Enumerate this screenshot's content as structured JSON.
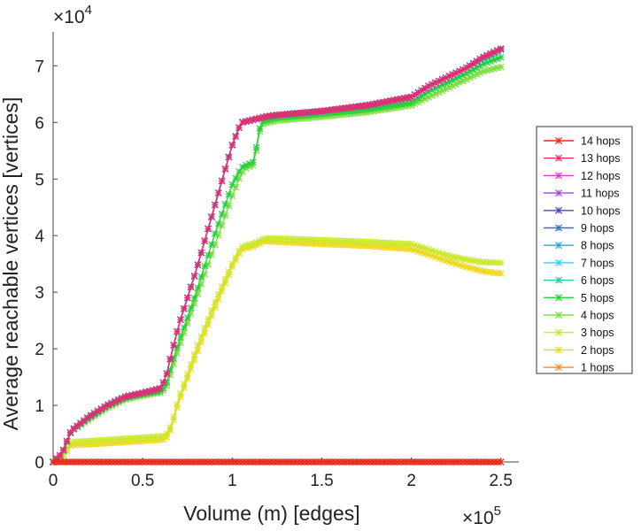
{
  "chart_data": {
    "type": "line",
    "xlabel": "Volume (m) [edges]",
    "ylabel": "Average reachable vertices [vertices]",
    "x_multiplier": {
      "base": "×10",
      "exp": "5"
    },
    "y_multiplier": {
      "base": "×10",
      "exp": "4"
    },
    "xlim": [
      0,
      260000
    ],
    "ylim": [
      0,
      76000
    ],
    "xticks": [
      0,
      50000,
      100000,
      150000,
      200000,
      250000
    ],
    "xtick_labels": [
      "0",
      "0.5",
      "1",
      "1.5",
      "2",
      "2.5"
    ],
    "yticks": [
      0,
      10000,
      20000,
      30000,
      40000,
      50000,
      60000,
      70000
    ],
    "ytick_labels": [
      "0",
      "1",
      "2",
      "3",
      "4",
      "5",
      "6",
      "7"
    ],
    "legend_position": "outside-right",
    "x": [
      0,
      5000,
      10000,
      20000,
      30000,
      40000,
      50000,
      60000,
      63000,
      66000,
      70000,
      80000,
      90000,
      100000,
      105000,
      108000,
      112000,
      116000,
      118000,
      125000,
      150000,
      175000,
      200000,
      210000,
      220000,
      230000,
      240000,
      250000
    ],
    "series": [
      {
        "name": "14 hops",
        "color": "#e8281c",
        "values": [
          0,
          0,
          0,
          0,
          0,
          0,
          0,
          0,
          0,
          0,
          0,
          0,
          0,
          0,
          0,
          0,
          0,
          0,
          0,
          0,
          0,
          0,
          0,
          0,
          0,
          0,
          0,
          0
        ]
      },
      {
        "name": "13 hops",
        "color": "#e0306a",
        "values": [
          0,
          1500,
          5500,
          8000,
          10000,
          11500,
          12200,
          13000,
          15000,
          19000,
          24000,
          34000,
          45000,
          56000,
          60000,
          60200,
          60500,
          60800,
          61000,
          61300,
          62000,
          63000,
          64500,
          66500,
          68000,
          69500,
          71500,
          73000
        ]
      },
      {
        "name": "12 hops",
        "color": "#d43cc8",
        "values": [
          0,
          1500,
          5500,
          8000,
          10000,
          11500,
          12200,
          13000,
          15000,
          19000,
          24000,
          34000,
          45000,
          56000,
          60000,
          60200,
          60500,
          60800,
          61000,
          61300,
          62000,
          63000,
          64500,
          66500,
          68000,
          69500,
          71500,
          73000
        ]
      },
      {
        "name": "11 hops",
        "color": "#a444e0",
        "values": [
          0,
          1500,
          5500,
          8000,
          10000,
          11500,
          12200,
          13000,
          15000,
          19000,
          24000,
          34000,
          45000,
          56000,
          60000,
          60200,
          60500,
          60800,
          61000,
          61300,
          62000,
          63000,
          64500,
          66500,
          68000,
          69500,
          71500,
          73000
        ]
      },
      {
        "name": "10 hops",
        "color": "#4a42d8",
        "values": [
          0,
          1500,
          5500,
          8000,
          10000,
          11500,
          12200,
          13000,
          15000,
          19000,
          24000,
          34000,
          45000,
          56000,
          60000,
          60200,
          60500,
          60800,
          61000,
          61300,
          62000,
          63000,
          64500,
          66500,
          68000,
          69500,
          71500,
          73000
        ]
      },
      {
        "name": "9 hops",
        "color": "#2c6cf0",
        "values": [
          0,
          1500,
          5500,
          8000,
          10000,
          11500,
          12200,
          13000,
          15000,
          19000,
          24000,
          34000,
          45000,
          56000,
          60000,
          60200,
          60500,
          60800,
          61000,
          61300,
          62000,
          63000,
          64500,
          66500,
          68000,
          69500,
          71500,
          73000
        ]
      },
      {
        "name": "8 hops",
        "color": "#2aa0f0",
        "values": [
          0,
          1500,
          5500,
          8000,
          10000,
          11500,
          12200,
          13000,
          15000,
          19000,
          24000,
          34000,
          45000,
          56000,
          60000,
          60200,
          60500,
          60800,
          61000,
          61300,
          62000,
          63000,
          64500,
          66500,
          68000,
          69500,
          71500,
          73000
        ]
      },
      {
        "name": "7 hops",
        "color": "#2ad4e6",
        "values": [
          0,
          1500,
          5500,
          8000,
          10000,
          11500,
          12200,
          13000,
          15000,
          19000,
          24000,
          34000,
          45000,
          56000,
          60000,
          60200,
          60500,
          60800,
          61000,
          61300,
          62000,
          63000,
          64500,
          66500,
          68000,
          69500,
          71500,
          73000
        ]
      },
      {
        "name": "6 hops",
        "color": "#22cca0",
        "values": [
          0,
          1500,
          5500,
          8000,
          10000,
          11500,
          12200,
          13000,
          15000,
          19000,
          24000,
          34000,
          45000,
          56000,
          60000,
          60200,
          60500,
          60800,
          61000,
          61300,
          62000,
          63000,
          64500,
          66500,
          68000,
          69500,
          71300,
          72800
        ]
      },
      {
        "name": "5 hops",
        "color": "#22d040",
        "values": [
          0,
          1400,
          5500,
          7800,
          9800,
          11300,
          12000,
          12500,
          13500,
          17000,
          21000,
          30000,
          40000,
          49000,
          52000,
          52500,
          53000,
          60000,
          60300,
          60800,
          61500,
          62300,
          63500,
          65500,
          67000,
          68500,
          70300,
          71500
        ]
      },
      {
        "name": "4 hops",
        "color": "#7ee03c",
        "values": [
          0,
          1200,
          5400,
          7500,
          9500,
          11000,
          11700,
          12300,
          13000,
          16000,
          20000,
          29000,
          38000,
          47000,
          51000,
          52000,
          52500,
          59500,
          59800,
          60300,
          61000,
          61800,
          63000,
          64500,
          66000,
          67500,
          69000,
          69800
        ]
      },
      {
        "name": "3 hops",
        "color": "#cce82a",
        "values": [
          0,
          900,
          3500,
          3700,
          3900,
          4100,
          4300,
          4500,
          4700,
          6500,
          11000,
          20000,
          28000,
          35000,
          38000,
          38300,
          38600,
          39200,
          39500,
          39500,
          39200,
          38900,
          38500,
          37500,
          36500,
          35800,
          35300,
          35200
        ]
      },
      {
        "name": "2 hops",
        "color": "#f0d81e",
        "values": [
          0,
          700,
          3000,
          3100,
          3300,
          3500,
          3700,
          3900,
          4100,
          6000,
          10500,
          19000,
          27000,
          34500,
          37500,
          37800,
          38100,
          38700,
          39000,
          38900,
          38500,
          38200,
          37600,
          36600,
          35500,
          34500,
          33700,
          33300
        ]
      },
      {
        "name": "1 hops",
        "color": "#f08c2c",
        "values": [
          0,
          0,
          0,
          0,
          0,
          0,
          0,
          0,
          0,
          0,
          0,
          0,
          0,
          0,
          0,
          0,
          0,
          0,
          0,
          0,
          0,
          0,
          0,
          0,
          0,
          0,
          0,
          0
        ]
      }
    ]
  }
}
